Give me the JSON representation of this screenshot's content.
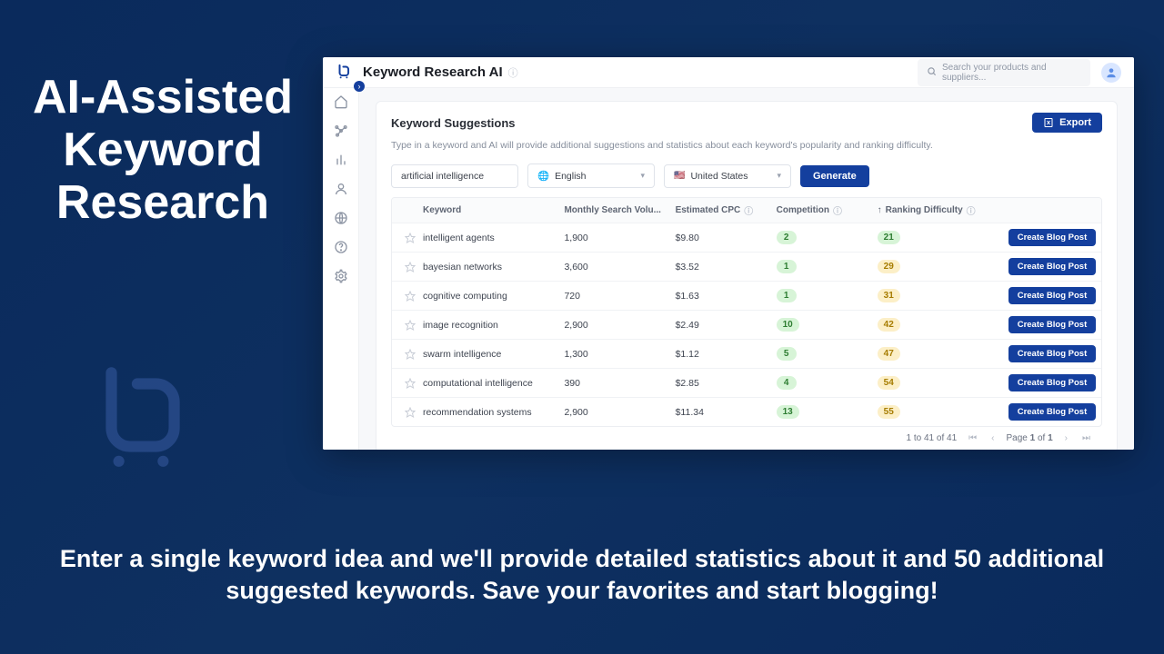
{
  "hero": {
    "title": "AI-Assisted Keyword Research",
    "subtitle": "Enter a single keyword idea and we'll provide detailed statistics about it and 50 additional suggested keywords. Save your favorites and start blogging!"
  },
  "colors": {
    "brand_blue": "#143f9e",
    "bg_gradient_from": "#0a2a5c",
    "bg_gradient_to": "#0e3060",
    "pill_green_bg": "#d7f4d7",
    "pill_green_fg": "#2e7d32",
    "pill_yellow_bg": "#fcefc7",
    "pill_yellow_fg": "#a67c00"
  },
  "app": {
    "title": "Keyword Research AI",
    "search_placeholder": "Search your products and suppliers...",
    "export_label": "Export",
    "section_title": "Keyword Suggestions",
    "section_desc": "Type in a keyword and AI will provide additional suggestions and statistics about each keyword's popularity and ranking difficulty.",
    "keyword_input": "artificial intelligence",
    "language": "English",
    "country": "United States",
    "country_flag": "🇺🇸",
    "generate_label": "Generate",
    "columns": {
      "keyword": "Keyword",
      "volume": "Monthly Search Volu...",
      "cpc": "Estimated CPC",
      "competition": "Competition",
      "difficulty": "Ranking Difficulty",
      "sort_indicator": "↑"
    },
    "create_label": "Create Blog Post",
    "rows": [
      {
        "keyword": "intelligent agents",
        "volume": "1,900",
        "cpc": "$9.80",
        "competition": "2",
        "comp_class": "g",
        "difficulty": "21",
        "diff_class": "g"
      },
      {
        "keyword": "bayesian networks",
        "volume": "3,600",
        "cpc": "$3.52",
        "competition": "1",
        "comp_class": "g",
        "difficulty": "29",
        "diff_class": "y"
      },
      {
        "keyword": "cognitive computing",
        "volume": "720",
        "cpc": "$1.63",
        "competition": "1",
        "comp_class": "g",
        "difficulty": "31",
        "diff_class": "y"
      },
      {
        "keyword": "image recognition",
        "volume": "2,900",
        "cpc": "$2.49",
        "competition": "10",
        "comp_class": "g",
        "difficulty": "42",
        "diff_class": "y"
      },
      {
        "keyword": "swarm intelligence",
        "volume": "1,300",
        "cpc": "$1.12",
        "competition": "5",
        "comp_class": "g",
        "difficulty": "47",
        "diff_class": "y"
      },
      {
        "keyword": "computational intelligence",
        "volume": "390",
        "cpc": "$2.85",
        "competition": "4",
        "comp_class": "g",
        "difficulty": "54",
        "diff_class": "y"
      },
      {
        "keyword": "recommendation systems",
        "volume": "2,900",
        "cpc": "$11.34",
        "competition": "13",
        "comp_class": "g",
        "difficulty": "55",
        "diff_class": "y"
      }
    ],
    "pager": {
      "range": "1 to 41 of 41",
      "page_label_prefix": "Page ",
      "page_current": "1",
      "page_label_mid": " of ",
      "page_total": "1"
    }
  }
}
